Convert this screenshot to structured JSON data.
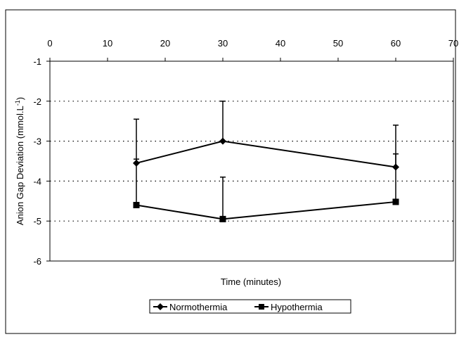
{
  "chart_data": {
    "type": "line",
    "title": "",
    "xlabel": "Time (minutes)",
    "ylabel_main": "Anion Gap Deviation (mmol.L",
    "ylabel_sup": "-1",
    "ylabel_close": ")",
    "xlim": [
      0,
      70
    ],
    "ylim": [
      -6,
      -1
    ],
    "x_ticks": [
      0,
      10,
      20,
      30,
      40,
      50,
      60,
      70
    ],
    "x_tick_labels": [
      "0",
      "10",
      "20",
      "30",
      "40",
      "50",
      "60",
      "70"
    ],
    "y_ticks": [
      -1,
      -2,
      -3,
      -4,
      -5,
      -6
    ],
    "y_tick_labels": [
      "-1",
      "-2",
      "-3",
      "-4",
      "-5",
      "-6"
    ],
    "x_axis_position": "top",
    "grid": "horizontal dotted",
    "legend_position": "bottom-center",
    "series": [
      {
        "name": "Normothermia",
        "marker": "diamond",
        "x": [
          15,
          30,
          60
        ],
        "y": [
          -3.55,
          -3.0,
          -3.65
        ],
        "error_up": [
          1.1,
          1.0,
          1.05
        ],
        "error_down": [
          0.0,
          0.0,
          0.0
        ]
      },
      {
        "name": "Hypothermia",
        "marker": "square",
        "x": [
          15,
          30,
          60
        ],
        "y": [
          -4.6,
          -4.95,
          -4.52
        ],
        "error_up": [
          1.15,
          1.05,
          1.2
        ],
        "error_down": [
          0.0,
          0.0,
          0.0
        ]
      }
    ]
  }
}
